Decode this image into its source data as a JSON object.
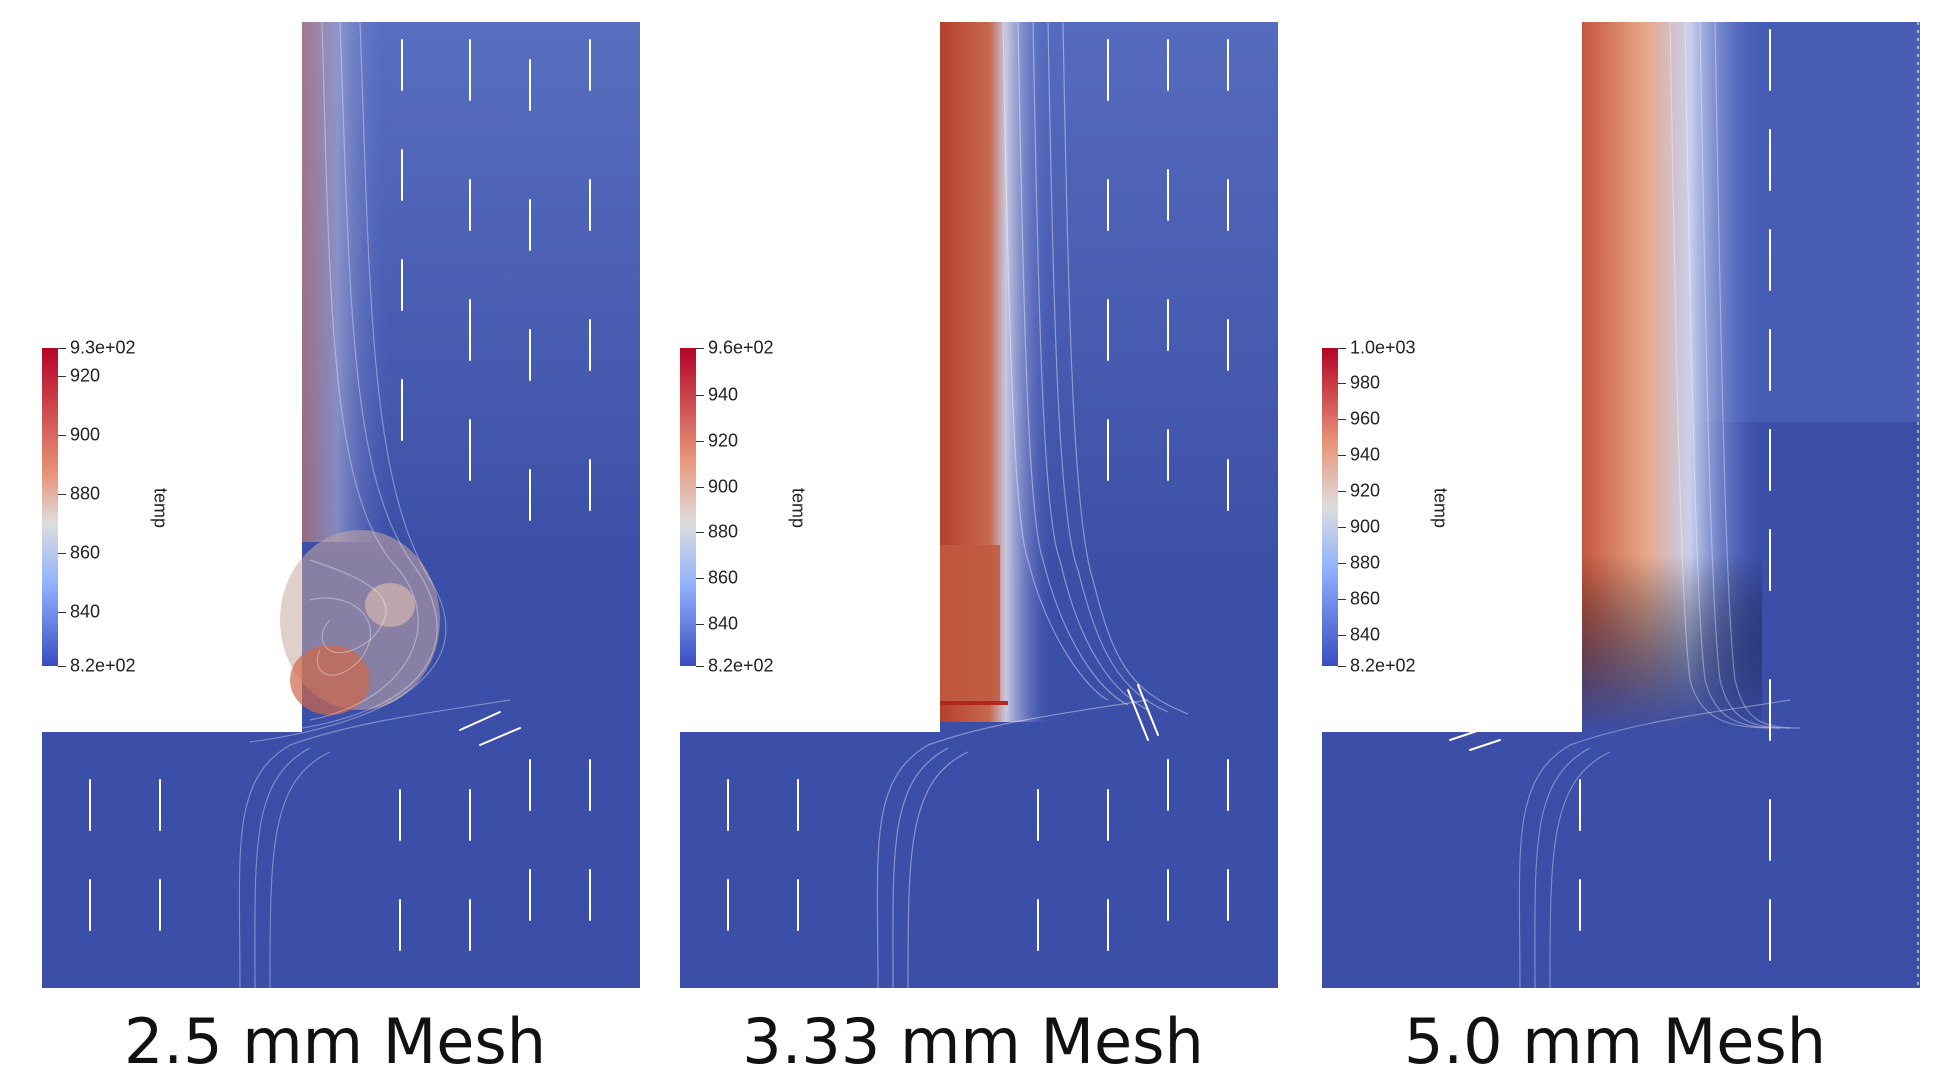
{
  "panels": [
    {
      "caption": "2.5 mm Mesh",
      "colorbar": {
        "title": "temp",
        "max_label": "9.3e+02",
        "min_label": "8.2e+02",
        "ticks": [
          "920",
          "900",
          "880",
          "860",
          "840"
        ]
      }
    },
    {
      "caption": "3.33 mm Mesh",
      "colorbar": {
        "title": "temp",
        "max_label": "9.6e+02",
        "min_label": "8.2e+02",
        "ticks": [
          "940",
          "920",
          "900",
          "880",
          "860",
          "840"
        ]
      }
    },
    {
      "caption": "5.0 mm Mesh",
      "colorbar": {
        "title": "temp",
        "max_label": "1.0e+03",
        "min_label": "8.2e+02",
        "ticks": [
          "980",
          "960",
          "940",
          "920",
          "900",
          "880",
          "860",
          "840"
        ]
      }
    }
  ],
  "colors": {
    "cold": "#3b4cc0",
    "neutral": "#dddddd",
    "hot": "#b40426"
  }
}
